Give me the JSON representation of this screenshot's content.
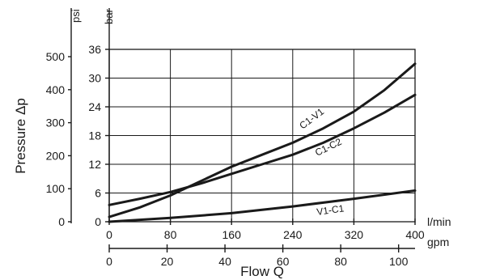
{
  "chart_data": {
    "type": "line",
    "ylabel": "Pressure Δp",
    "xlabel": "Flow Q",
    "x_unit": "l/min",
    "x_unit_secondary": "gpm",
    "y_unit": "bar",
    "y_unit_secondary": "psi",
    "xlim": [
      0,
      400
    ],
    "ylim": [
      0,
      36
    ],
    "x_ticks": [
      0,
      80,
      160,
      240,
      320,
      400
    ],
    "x_ticks_secondary": [
      0,
      20,
      40,
      60,
      80,
      100
    ],
    "y_ticks": [
      0,
      6,
      12,
      18,
      24,
      30,
      36
    ],
    "y_ticks_secondary": [
      0,
      100,
      200,
      300,
      400,
      500
    ],
    "grid": true,
    "series": [
      {
        "name": "C1-V1",
        "x": [
          0,
          40,
          80,
          120,
          160,
          200,
          240,
          280,
          320,
          360,
          400
        ],
        "y": [
          1.0,
          3.0,
          5.5,
          8.5,
          11.5,
          14.0,
          16.5,
          19.5,
          23.0,
          27.5,
          33.0
        ]
      },
      {
        "name": "C1-C2",
        "x": [
          0,
          40,
          80,
          120,
          160,
          200,
          240,
          280,
          320,
          360,
          400
        ],
        "y": [
          3.5,
          4.8,
          6.2,
          8.0,
          10.0,
          12.0,
          14.0,
          16.5,
          19.5,
          22.8,
          26.5
        ]
      },
      {
        "name": "V1-C1",
        "x": [
          0,
          80,
          160,
          240,
          320,
          400
        ],
        "y": [
          0,
          0.8,
          1.8,
          3.2,
          4.8,
          6.5
        ]
      }
    ]
  }
}
